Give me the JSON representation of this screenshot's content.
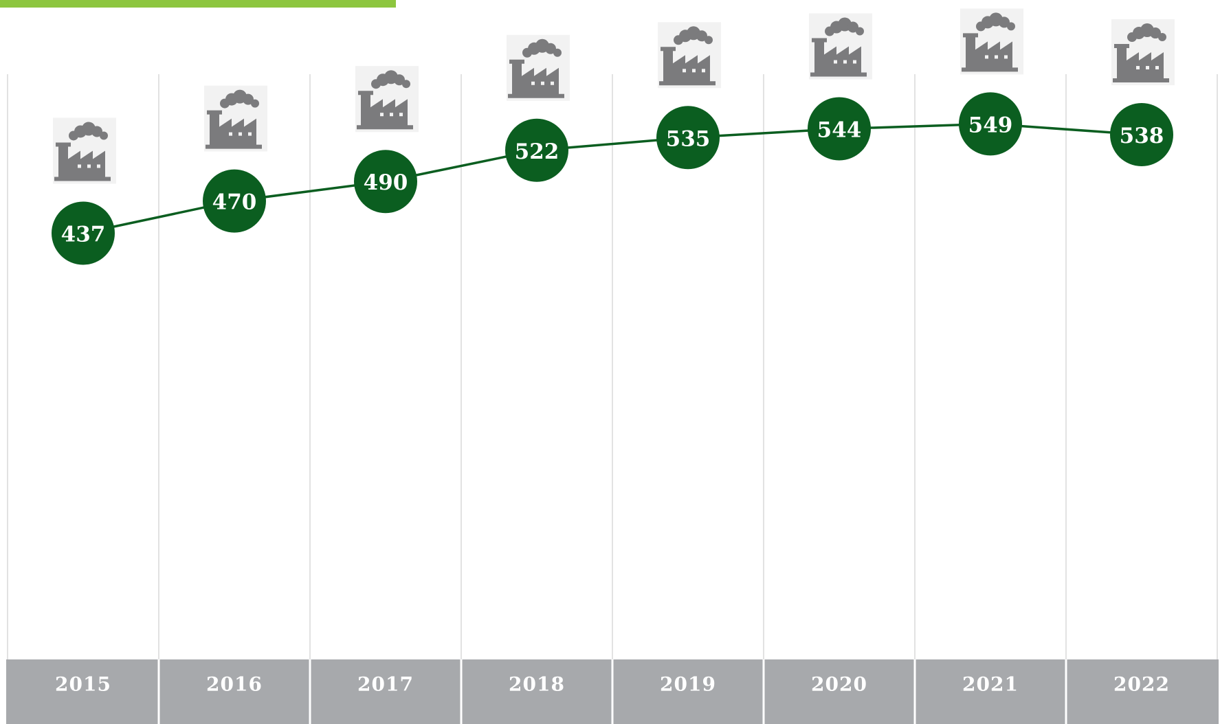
{
  "chart_data": {
    "type": "line",
    "categories": [
      "2015",
      "2016",
      "2017",
      "2018",
      "2019",
      "2020",
      "2021",
      "2022"
    ],
    "series": [
      {
        "color": "#0b5e20",
        "values": [
          437,
          470,
          490,
          522,
          535,
          544,
          549,
          538
        ]
      }
    ],
    "ylim": [
      0,
      600
    ],
    "grid": true
  }
}
